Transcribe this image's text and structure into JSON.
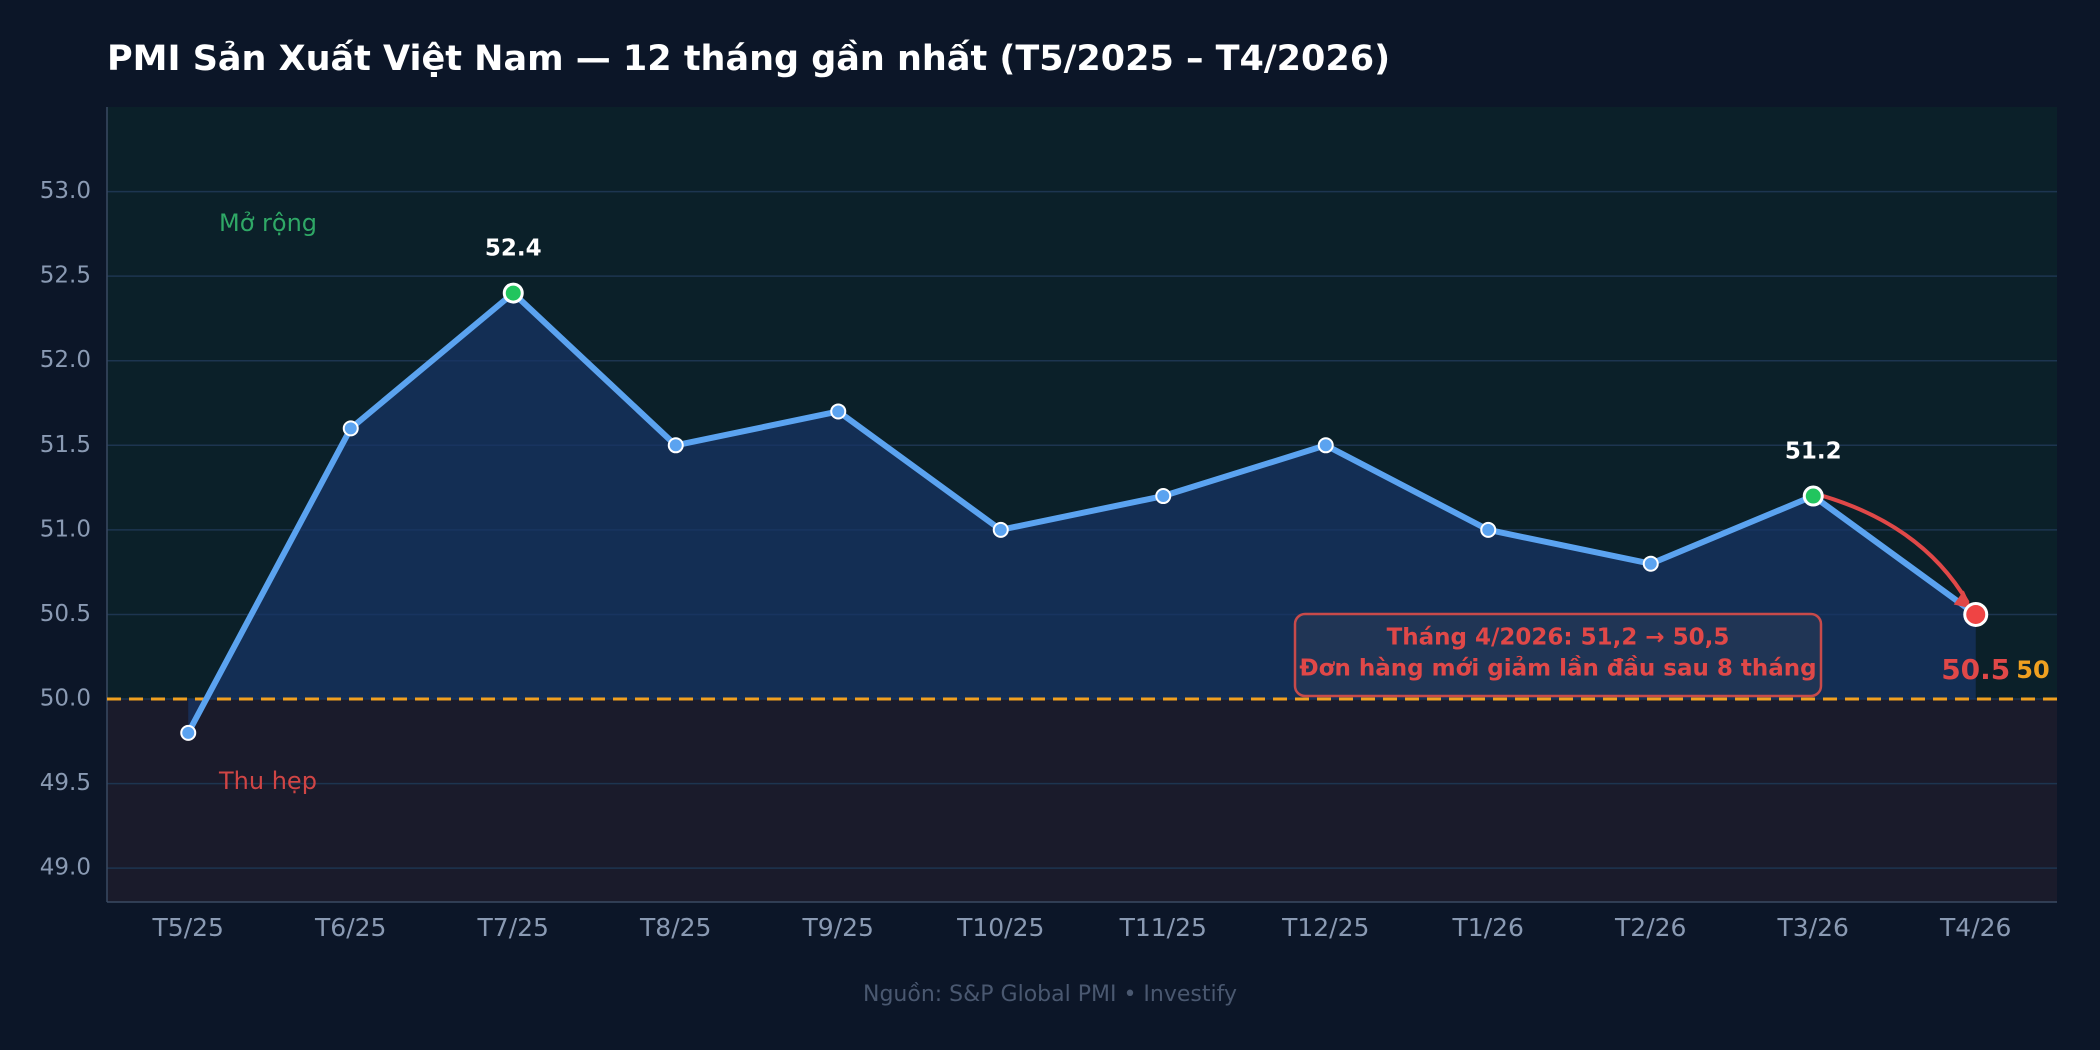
{
  "chart_data": {
    "type": "line",
    "title": "PMI Sản Xuất Việt Nam — 12 tháng gần nhất (T5/2025 – T4/2026)",
    "categories": [
      "T5/25",
      "T6/25",
      "T7/25",
      "T8/25",
      "T9/25",
      "T10/25",
      "T11/25",
      "T12/25",
      "T1/26",
      "T2/26",
      "T3/26",
      "T4/26"
    ],
    "values": [
      49.8,
      51.6,
      52.4,
      51.5,
      51.7,
      51.0,
      51.2,
      51.5,
      51.0,
      50.8,
      51.2,
      50.5
    ],
    "value_labels": [
      null,
      null,
      "52.4",
      null,
      null,
      null,
      null,
      null,
      null,
      null,
      "51.2",
      "50.5"
    ],
    "color": "#5ba3f0",
    "marker_colors": [
      "#5ba3f0",
      "#5ba3f0",
      "#22c55e",
      "#5ba3f0",
      "#5ba3f0",
      "#5ba3f0",
      "#5ba3f0",
      "#5ba3f0",
      "#5ba3f0",
      "#5ba3f0",
      "#22c55e",
      "#ef4444"
    ],
    "ylim": [
      48.8,
      53.5
    ],
    "yticks": [
      {
        "value": 49,
        "label": "49.0"
      },
      {
        "value": 49.5,
        "label": "49.5"
      },
      {
        "value": 50,
        "label": "50.0"
      },
      {
        "value": 50.5,
        "label": "50.5"
      },
      {
        "value": 51,
        "label": "51.0"
      },
      {
        "value": 51.5,
        "label": "51.5"
      },
      {
        "value": 52,
        "label": "52.0"
      },
      {
        "value": 52.5,
        "label": "52.5"
      },
      {
        "value": 53,
        "label": "53.0"
      }
    ],
    "grid": true,
    "threshold": 50,
    "threshold_color": "#f0a020",
    "region_labels": {
      "above": "Mở rộng",
      "below": "Thu hẹp"
    },
    "annotation": [
      "Tháng 4/2026: 51,2 → 50,5",
      "Đơn hàng mới giảm lần đầu sau 8 tháng"
    ],
    "source": "Nguồn: S&P Global PMI  •  Investify"
  }
}
